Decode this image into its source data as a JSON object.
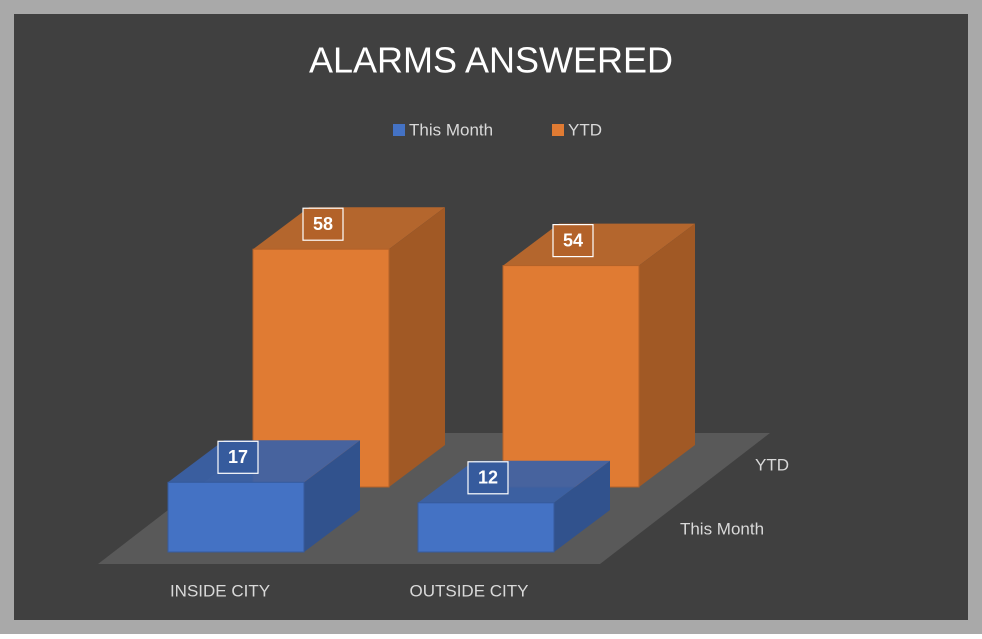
{
  "chart_data": {
    "type": "bar3d",
    "title": "ALARMS ANSWERED",
    "categories": [
      "INSIDE CITY",
      "OUTSIDE CITY"
    ],
    "series": [
      {
        "name": "This Month",
        "color": "#4472c4",
        "values": [
          17,
          12
        ]
      },
      {
        "name": "YTD",
        "color": "#e07b33",
        "values": [
          58,
          54
        ]
      }
    ],
    "legend": "top"
  }
}
